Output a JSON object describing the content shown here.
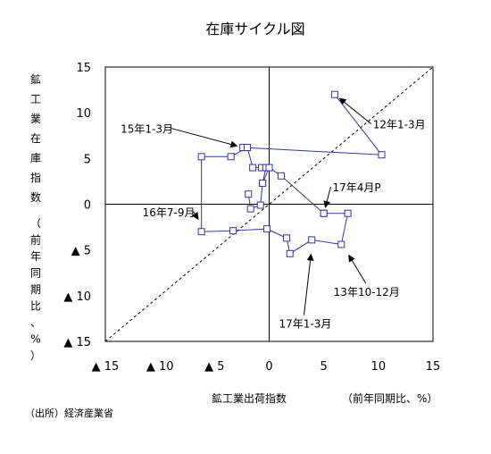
{
  "chart_data": {
    "type": "scatter",
    "title": "在庫サイクル図",
    "xlabel": "鉱工業出荷指数",
    "xlabel_unit": "（前年同期比、%）",
    "ylabel_chars": [
      "鉱",
      "工",
      "業",
      "在",
      "庫",
      "指",
      "数"
    ],
    "ylabel_unit_chars": [
      "（",
      "前",
      "年",
      "同",
      "期",
      "比",
      "、",
      "%",
      "）"
    ],
    "xlim": [
      -15,
      15
    ],
    "ylim": [
      -15,
      15
    ],
    "x_tick_labels": [
      "▲ 15",
      "▲ 10",
      "▲ 5",
      "0",
      "5",
      "10",
      "15"
    ],
    "y_tick_labels": [
      "15",
      "10",
      "5",
      "0",
      "▲ 5",
      "▲ 10",
      "▲ 15"
    ],
    "source": "（出所）経済産業省",
    "series": [
      {
        "color": "#3333aa",
        "x": [
          6.0,
          10.3,
          -2.4,
          -2.0,
          -3.5,
          -6.2,
          -6.2,
          -3.3,
          -0.2,
          1.6,
          1.9,
          3.9,
          6.6,
          7.2,
          5.0
        ],
        "y": [
          12.0,
          5.4,
          6.2,
          6.2,
          5.2,
          5.2,
          -3.0,
          -2.9,
          -2.7,
          -3.7,
          -5.4,
          -3.9,
          -4.4,
          -1.0,
          -1.0
        ]
      },
      {
        "color": "#3333aa",
        "x": [
          -2.0,
          -1.5,
          -0.7,
          -0.3,
          -0.6,
          0.0,
          1.1,
          5.0
        ],
        "y": [
          6.2,
          4.0,
          4.0,
          4.0,
          2.3,
          4.0,
          3.1,
          -1.0
        ]
      },
      {
        "color": "#3333aa",
        "x": [
          -0.6,
          -0.8,
          -1.7,
          -1.9
        ],
        "y": [
          2.3,
          -0.1,
          -0.5,
          1.1
        ]
      }
    ],
    "reference_line": {
      "style": "dashed",
      "from": [
        -15,
        -15
      ],
      "to": [
        15,
        15
      ]
    },
    "annotations": [
      {
        "text": "12年1-3月",
        "tx": 9.5,
        "ty": 8.3,
        "ax": 6.0,
        "ay": 12.0
      },
      {
        "text": "15年1-3月",
        "tx": -13.6,
        "ty": 7.8,
        "ax": -2.4,
        "ay": 6.2
      },
      {
        "text": "17年4月P",
        "tx": 5.8,
        "ty": 1.4,
        "ax": 5.0,
        "ay": -1.0
      },
      {
        "text": "16年7-9月",
        "tx": -11.6,
        "ty": -1.3,
        "ax": -6.2,
        "ay": -2.2
      },
      {
        "text": "13年10-12月",
        "tx": 5.9,
        "ty": -10.0,
        "ax": 7.0,
        "ay": -5.0
      },
      {
        "text": "17年1-3月",
        "tx": 0.9,
        "ty": -13.5,
        "ax": 3.9,
        "ay": -4.8
      }
    ]
  }
}
